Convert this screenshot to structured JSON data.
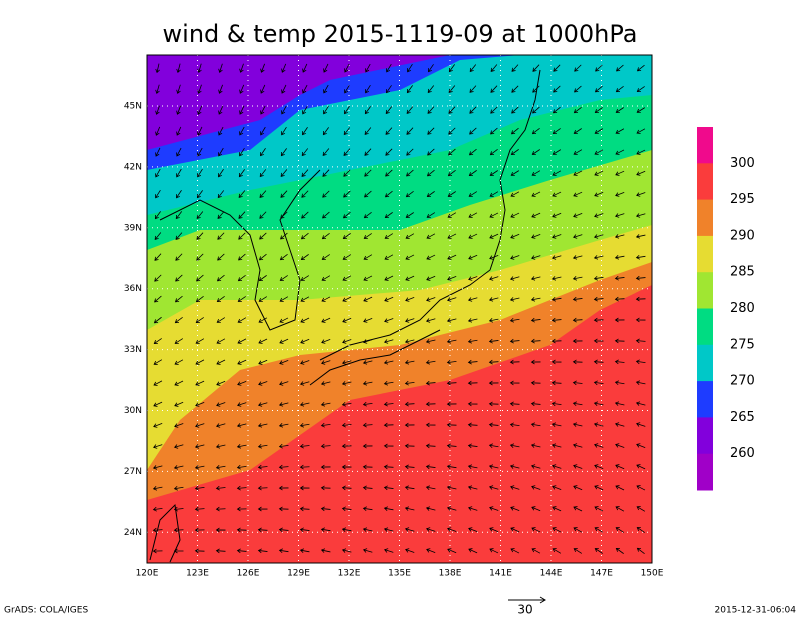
{
  "title": "wind & temp 2015-1119-09 at 1000hPa",
  "map": {
    "lat_labels": [
      "45N",
      "42N",
      "39N",
      "36N",
      "33N",
      "30N",
      "27N",
      "24N"
    ],
    "lon_labels": [
      "120E",
      "123E",
      "126E",
      "129E",
      "132E",
      "135E",
      "138E",
      "141E",
      "144E",
      "147E",
      "150E"
    ]
  },
  "colorbar": {
    "levels": [
      300,
      295,
      290,
      285,
      280,
      275,
      270,
      265,
      260
    ],
    "colors": [
      "#f00a8c",
      "#fa3c3c",
      "#f0822a",
      "#e6dc32",
      "#a0e632",
      "#00dc82",
      "#00c8c8",
      "#1e3cff",
      "#8200dc",
      "#a000c8"
    ]
  },
  "reference_vector": {
    "label": "30"
  },
  "footer": {
    "left": "GrADS: COLA/IGES",
    "right": "2015-12-31-06:04"
  }
}
